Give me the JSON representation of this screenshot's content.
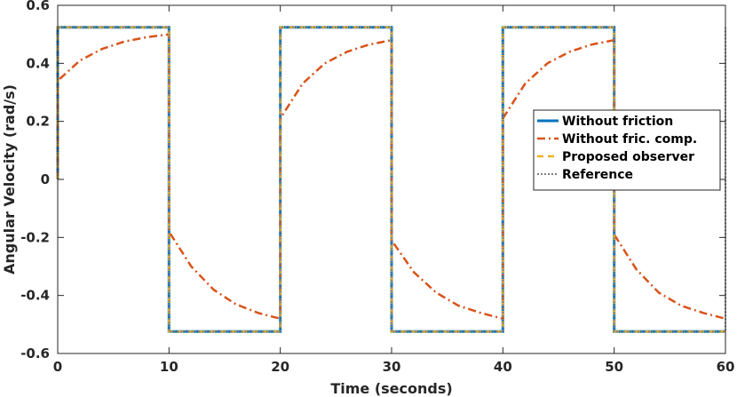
{
  "chart_data": {
    "type": "line",
    "title": "",
    "xlabel": "Time (seconds)",
    "ylabel": "Angular Velocity (rad/s)",
    "xlim": [
      0,
      60
    ],
    "ylim": [
      -0.6,
      0.6
    ],
    "xticks": [
      0,
      10,
      20,
      30,
      40,
      50,
      60
    ],
    "xtick_labels": [
      "0",
      "10",
      "20",
      "30",
      "40",
      "50",
      "60"
    ],
    "yticks": [
      0.6,
      0.4,
      0.2,
      0,
      -0.2,
      -0.4,
      -0.6
    ],
    "ytick_labels": [
      "0.6",
      "0.4",
      "0.2",
      "0",
      "-0.2",
      "-0.4",
      "-0.6"
    ],
    "grid": false,
    "legend_position": "right",
    "series": [
      {
        "name": "Without friction",
        "color": "#0072BD",
        "style": "solid",
        "x": [
          0,
          0,
          10,
          10,
          20,
          20,
          30,
          30,
          40,
          40,
          50,
          50,
          60
        ],
        "y": [
          0,
          0.524,
          0.524,
          -0.524,
          -0.524,
          0.524,
          0.524,
          -0.524,
          -0.524,
          0.524,
          0.524,
          -0.524,
          -0.524
        ]
      },
      {
        "name": "Without fric. comp.",
        "color": "#D95319",
        "style": "dashdot",
        "x": [
          0,
          0,
          2,
          4,
          6,
          8,
          10,
          10,
          12,
          14,
          16,
          18,
          20,
          20,
          22,
          24,
          26,
          28,
          30,
          30,
          32,
          34,
          36,
          38,
          40,
          40,
          42,
          44,
          46,
          48,
          50,
          50,
          52,
          54,
          56,
          58,
          60
        ],
        "y": [
          0,
          0.34,
          0.41,
          0.45,
          0.475,
          0.49,
          0.5,
          -0.18,
          -0.3,
          -0.38,
          -0.43,
          -0.46,
          -0.48,
          0.21,
          0.33,
          0.4,
          0.44,
          0.465,
          0.48,
          -0.21,
          -0.32,
          -0.39,
          -0.435,
          -0.46,
          -0.48,
          0.21,
          0.33,
          0.4,
          0.44,
          0.465,
          0.48,
          -0.19,
          -0.31,
          -0.39,
          -0.435,
          -0.46,
          -0.48
        ]
      },
      {
        "name": "Proposed observer",
        "color": "#EDB120",
        "style": "dashed",
        "x": [
          0,
          0,
          10,
          10,
          20,
          20,
          30,
          30,
          40,
          40,
          50,
          50,
          60
        ],
        "y": [
          0,
          0.524,
          0.524,
          -0.524,
          -0.524,
          0.524,
          0.524,
          -0.524,
          -0.524,
          0.524,
          0.524,
          -0.524,
          -0.524
        ]
      },
      {
        "name": "Reference",
        "color": "#808080",
        "style": "dotted",
        "x": [
          0,
          0,
          10,
          10,
          20,
          20,
          30,
          30,
          40,
          40,
          50,
          50,
          60,
          60
        ],
        "y": [
          0,
          0.524,
          0.524,
          -0.524,
          -0.524,
          0.524,
          0.524,
          -0.524,
          -0.524,
          0.524,
          0.524,
          -0.524,
          -0.524,
          0.524
        ]
      }
    ]
  }
}
